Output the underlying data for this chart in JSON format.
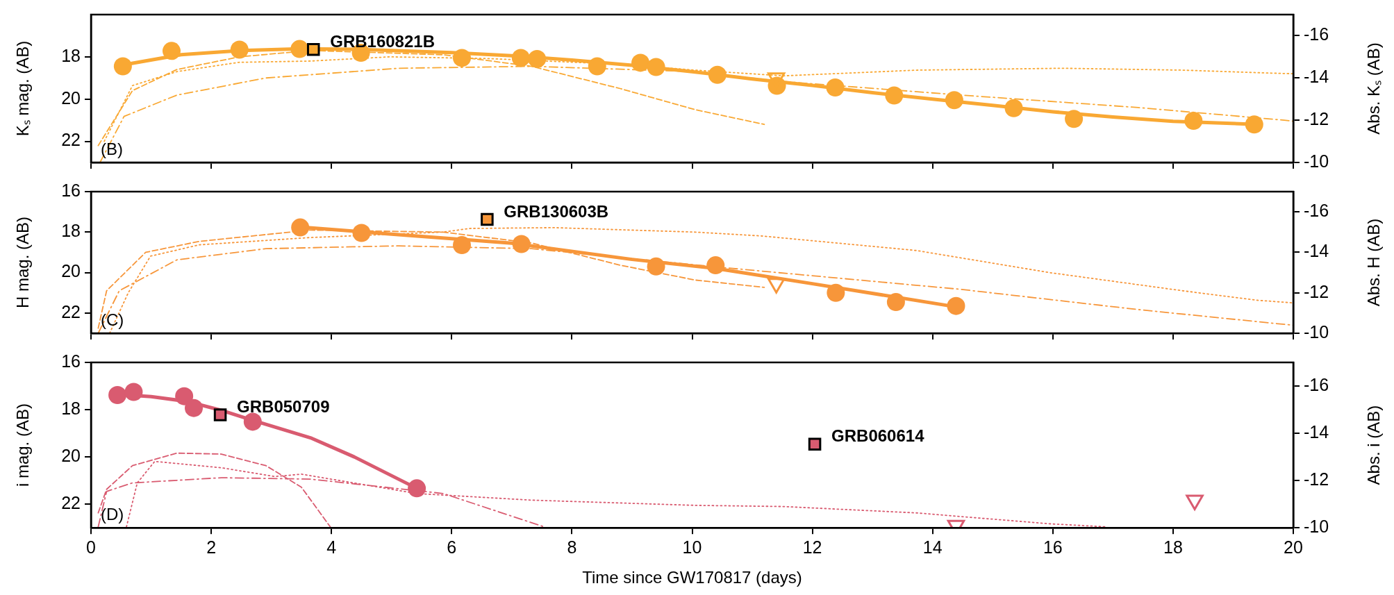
{
  "chart_data": [
    {
      "type": "scatter",
      "ylabel": "Kₛ mag. (AB)",
      "y2label": "Abs. Kₛ (AB)",
      "xlim": [
        0,
        20
      ],
      "xticks": [
        0,
        2,
        4,
        6,
        8,
        10,
        12,
        14,
        16,
        18,
        20
      ],
      "ylim": [
        23,
        16
      ],
      "yticks": [
        18,
        20,
        22
      ],
      "y2lim": [
        -10,
        -17
      ],
      "y2ticks": [
        -16,
        -14,
        -12,
        -10
      ],
      "tick_labels": "y",
      "annotations": [
        "(B)",
        {
          "text": "GRB160821B",
          "x": 3.7,
          "y": 17.65
        }
      ],
      "series": [
        {
          "type": "line",
          "marker": "none",
          "line_style": "dashed",
          "color": "#f9a833",
          "x": [
            0.12,
            0.69,
            1.43,
            2.47,
            3.65,
            5.86,
            7.33,
            8.8,
            10.05,
            11.2
          ],
          "values": [
            22.2,
            19.6,
            18.6,
            18.0,
            17.7,
            17.9,
            18.45,
            19.5,
            20.5,
            21.2
          ]
        },
        {
          "type": "line",
          "marker": "none",
          "line_style": "dotted",
          "color": "#f9a833",
          "x": [
            0.22,
            0.69,
            1.43,
            2.46,
            3.65,
            4.97,
            6.59,
            8.8,
            10.05,
            11.52,
            13.73,
            16.16,
            18.16,
            19.63,
            20
          ],
          "values": [
            22.0,
            19.36,
            18.7,
            18.26,
            18.2,
            18.0,
            18.08,
            18.35,
            18.63,
            18.9,
            18.63,
            18.54,
            18.63,
            18.77,
            18.8
          ]
        },
        {
          "type": "line",
          "marker": "none",
          "line_style": "dashdot",
          "color": "#f9a833",
          "x": [
            0.15,
            0.55,
            1.43,
            2.91,
            5.12,
            7.33,
            10.05,
            11.52,
            14.47,
            17.42,
            19.85,
            20
          ],
          "values": [
            23.0,
            20.82,
            19.81,
            19.0,
            18.54,
            18.45,
            18.7,
            19.17,
            19.81,
            20.4,
            21.0,
            21.05
          ]
        },
        {
          "type": "line",
          "marker": "none",
          "line_style": "solid",
          "color": "#f9a833",
          "x": [
            0.5,
            1.5,
            2.5,
            3.5,
            4.5,
            6,
            7,
            8,
            9,
            10,
            11,
            12,
            13,
            14,
            15,
            16,
            17,
            18,
            19.4
          ],
          "values": [
            18.4,
            17.9,
            17.7,
            17.62,
            17.65,
            17.8,
            17.95,
            18.15,
            18.4,
            18.7,
            19.05,
            19.35,
            19.7,
            20.0,
            20.3,
            20.6,
            20.85,
            21.05,
            21.2
          ]
        },
        {
          "type": "scatter",
          "marker": "circle",
          "color": "#f9a833",
          "x": [
            0.53,
            1.34,
            2.47,
            3.47,
            4.49,
            6.17,
            7.15,
            7.42,
            8.42,
            9.14,
            9.4,
            10.42,
            11.41,
            12.38,
            13.36,
            14.36,
            15.35,
            16.35,
            18.34,
            19.35
          ],
          "values": [
            18.45,
            17.72,
            17.66,
            17.63,
            17.81,
            18.05,
            18.05,
            18.1,
            18.45,
            18.28,
            18.48,
            18.85,
            19.37,
            19.45,
            19.83,
            20.05,
            20.43,
            20.94,
            21.03,
            21.2
          ]
        },
        {
          "type": "scatter",
          "marker": "triangle",
          "color": "#f9a833",
          "x": [
            11.4
          ],
          "values": [
            19.0
          ]
        },
        {
          "type": "scatter",
          "marker": "square",
          "color": "#f9a833",
          "x": [
            3.7
          ],
          "values": [
            17.65
          ]
        }
      ]
    },
    {
      "type": "scatter",
      "ylabel": "H mag. (AB)",
      "y2label": "Abs. H (AB)",
      "xlim": [
        0,
        20
      ],
      "xticks": [
        0,
        2,
        4,
        6,
        8,
        10,
        12,
        14,
        16,
        18,
        20
      ],
      "ylim": [
        23,
        16
      ],
      "yticks": [
        16,
        18,
        20,
        22
      ],
      "y2lim": [
        -10,
        -17
      ],
      "y2ticks": [
        -16,
        -14,
        -12,
        -10
      ],
      "tick_labels": "y",
      "annotations": [
        "(C)",
        {
          "text": "GRB130603B",
          "x": 6.59,
          "y": 17.37
        }
      ],
      "series": [
        {
          "type": "line",
          "marker": "none",
          "line_style": "dashed",
          "color": "#f7963a",
          "x": [
            0.12,
            0.26,
            0.91,
            1.8,
            3.64,
            5.86,
            7.33,
            8.81,
            10.05,
            11.2
          ],
          "values": [
            22.75,
            20.9,
            19.0,
            18.46,
            17.9,
            18.0,
            18.54,
            19.64,
            20.37,
            20.73
          ]
        },
        {
          "type": "line",
          "marker": "none",
          "line_style": "dotted",
          "color": "#f7963a",
          "x": [
            0.31,
            0.62,
            0.99,
            1.8,
            3.64,
            5.86,
            6.3,
            7.7,
            10.05,
            11.15,
            13.73,
            15.94,
            18.16,
            19.41,
            20
          ],
          "values": [
            23.0,
            21.0,
            19.19,
            18.63,
            18.27,
            18.0,
            17.82,
            17.78,
            18.0,
            18.19,
            18.91,
            20.0,
            20.9,
            21.37,
            21.5
          ]
        },
        {
          "type": "line",
          "marker": "none",
          "line_style": "dashdot",
          "color": "#f7963a",
          "x": [
            0.12,
            0.47,
            1.43,
            2.91,
            5.12,
            7.33,
            10.43,
            14.47,
            17.42,
            19.85,
            20
          ],
          "values": [
            23.0,
            20.9,
            19.37,
            18.82,
            18.68,
            18.82,
            19.73,
            20.83,
            21.83,
            22.56,
            22.6
          ]
        },
        {
          "type": "line",
          "marker": "none",
          "line_style": "solid",
          "color": "#f7963a",
          "x": [
            3.48,
            5,
            7,
            9,
            10.4,
            12,
            14.4
          ],
          "values": [
            17.75,
            18.1,
            18.55,
            19.35,
            19.8,
            20.55,
            21.7
          ]
        },
        {
          "type": "scatter",
          "marker": "circle",
          "color": "#f7963a",
          "x": [
            3.48,
            4.5,
            6.17,
            7.16,
            9.4,
            10.39,
            12.39,
            13.39,
            14.39
          ],
          "values": [
            17.77,
            18.04,
            18.64,
            18.59,
            19.7,
            19.64,
            21.0,
            21.46,
            21.65
          ]
        },
        {
          "type": "scatter",
          "marker": "triangle",
          "color": "#f7963a",
          "x": [
            11.4
          ],
          "values": [
            20.54
          ]
        },
        {
          "type": "scatter",
          "marker": "square",
          "color": "#f7963a",
          "x": [
            6.59
          ],
          "values": [
            17.37
          ]
        }
      ]
    },
    {
      "type": "scatter",
      "xlabel": "Time since GW170817 (days)",
      "ylabel": "i mag. (AB)",
      "y2label": "Abs. i (AB)",
      "xlim": [
        0,
        20
      ],
      "xticks": [
        0,
        2,
        4,
        6,
        8,
        10,
        12,
        14,
        16,
        18,
        20
      ],
      "ylim": [
        23,
        16
      ],
      "yticks": [
        16,
        18,
        20,
        22
      ],
      "y2lim": [
        -10,
        -17
      ],
      "y2ticks": [
        -16,
        -14,
        -12,
        -10
      ],
      "annotations": [
        "(D)",
        {
          "text": "GRB050709",
          "x": 2.15,
          "y": 18.22
        },
        {
          "text": "GRB060614",
          "x": 12.04,
          "y": 19.46
        }
      ],
      "series": [
        {
          "type": "line",
          "marker": "none",
          "line_style": "dashed",
          "color": "#d95b70",
          "x": [
            0.12,
            0.26,
            0.69,
            1.43,
            2.17,
            2.91,
            3.5,
            3.98
          ],
          "values": [
            22.37,
            21.37,
            20.37,
            19.84,
            19.88,
            20.37,
            21.28,
            22.96
          ]
        },
        {
          "type": "line",
          "marker": "none",
          "line_style": "dotted",
          "color": "#d95b70",
          "x": [
            0.59,
            0.77,
            1.06,
            2.17,
            3.06,
            3.5,
            5.42,
            7.33,
            10.05,
            11.52,
            13.73,
            15.94,
            16.9
          ],
          "values": [
            22.96,
            21.1,
            20.19,
            20.46,
            20.83,
            20.73,
            21.55,
            21.83,
            22.05,
            22.1,
            22.37,
            22.83,
            22.96
          ]
        },
        {
          "type": "line",
          "marker": "none",
          "line_style": "dashdot",
          "color": "#d95b70",
          "x": [
            0.12,
            0.26,
            0.69,
            2.17,
            3.65,
            5.86,
            7.54
          ],
          "values": [
            22.96,
            21.46,
            21.1,
            20.88,
            20.94,
            21.55,
            22.96
          ]
        },
        {
          "type": "line",
          "marker": "none",
          "line_style": "solid",
          "color": "#d95b70",
          "x": [
            0.44,
            1.0,
            1.6,
            2.2,
            2.69,
            3.65,
            4.38,
            5.42
          ],
          "values": [
            17.35,
            17.45,
            17.65,
            18.05,
            18.45,
            19.19,
            20.0,
            21.33
          ]
        },
        {
          "type": "scatter",
          "marker": "circle",
          "color": "#d95b70",
          "x": [
            0.44,
            0.71,
            1.55,
            1.71,
            2.69,
            5.42
          ],
          "values": [
            17.38,
            17.25,
            17.43,
            17.93,
            18.51,
            21.33
          ]
        },
        {
          "type": "scatter",
          "marker": "triangle",
          "color": "#d95b70",
          "x": [
            14.39,
            18.36
          ],
          "values": [
            22.9,
            21.83
          ]
        },
        {
          "type": "scatter",
          "marker": "square",
          "color": "#d95b70",
          "x": [
            2.15,
            12.04
          ],
          "values": [
            18.22,
            19.46
          ]
        }
      ]
    }
  ]
}
